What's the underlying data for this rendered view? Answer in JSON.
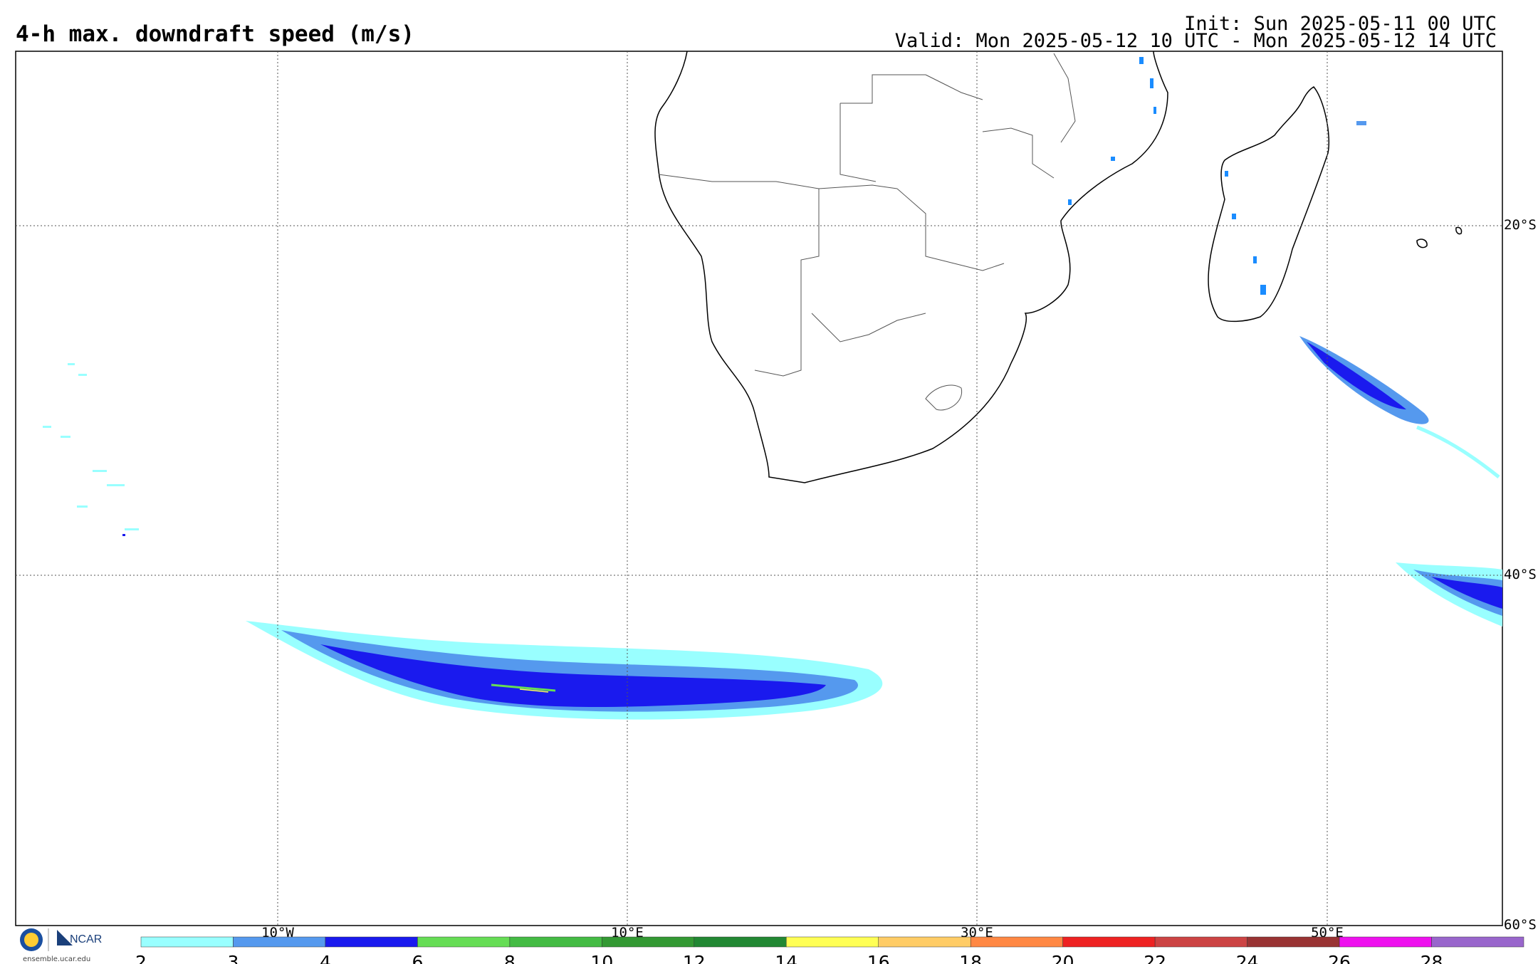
{
  "title": "4-h max. downdraft speed (m/s)",
  "init": "Init: Sun 2025-05-11 00 UTC",
  "valid": "Valid: Mon 2025-05-12 10 UTC - Mon 2025-05-12 14 UTC",
  "lon_labels": [
    "10°W",
    "10°E",
    "30°E",
    "50°E"
  ],
  "lat_labels": [
    "20°S",
    "40°S",
    "60°S"
  ],
  "colorbar": {
    "ticks": [
      "2",
      "3",
      "4",
      "6",
      "8",
      "10",
      "12",
      "14",
      "16",
      "18",
      "20",
      "22",
      "24",
      "26",
      "28"
    ],
    "colors": [
      "#99ffff",
      "#5599ee",
      "#1a1aee",
      "#66dd55",
      "#44bb44",
      "#339933",
      "#228833",
      "#ffff55",
      "#ffcc66",
      "#ff8844",
      "#ee2222",
      "#cc4444",
      "#993333",
      "#ee11ee",
      "#9966cc"
    ]
  },
  "logo": {
    "org": "NCAR",
    "url": "ensemble.ucar.edu",
    "nsf_icon": "nsf-logo-icon"
  }
}
